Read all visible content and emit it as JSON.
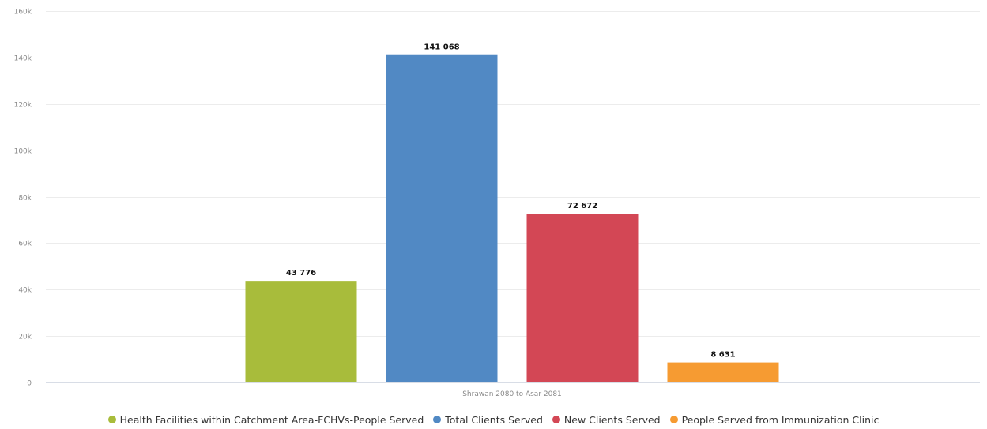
{
  "chart_data": {
    "type": "bar",
    "xlabel": "",
    "ylabel": "",
    "ylim": [
      0,
      160000
    ],
    "yticks": [
      0,
      20000,
      40000,
      60000,
      80000,
      100000,
      120000,
      140000,
      160000
    ],
    "ytick_labels": [
      "0",
      "20k",
      "40k",
      "60k",
      "80k",
      "100k",
      "120k",
      "140k",
      "160k"
    ],
    "grid": true,
    "legend_position": "bottom",
    "categories": [
      "Shrawan 2080 to Asar 2081"
    ],
    "series": [
      {
        "name": "Health Facilities within Catchment Area-FCHVs-People Served",
        "values": [
          43776
        ],
        "label": "43 776",
        "color": "#a8bc3b"
      },
      {
        "name": "Total Clients Served",
        "values": [
          141068
        ],
        "label": "141 068",
        "color": "#5189c4"
      },
      {
        "name": "New Clients Served",
        "values": [
          72672
        ],
        "label": "72 672",
        "color": "#d34755"
      },
      {
        "name": "People Served from Immunization Clinic",
        "values": [
          8631
        ],
        "label": "8 631",
        "color": "#f69b32"
      }
    ]
  }
}
